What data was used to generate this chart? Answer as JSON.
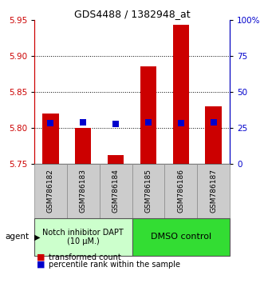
{
  "title": "GDS4488 / 1382948_at",
  "samples": [
    "GSM786182",
    "GSM786183",
    "GSM786184",
    "GSM786185",
    "GSM786186",
    "GSM786187"
  ],
  "red_bar_top": [
    5.82,
    5.8,
    5.763,
    5.885,
    5.943,
    5.83
  ],
  "red_bar_bottom": 5.75,
  "blue_square_y": [
    5.807,
    5.808,
    5.806,
    5.808,
    5.807,
    5.808
  ],
  "ylim": [
    5.75,
    5.95
  ],
  "yticks_left": [
    5.75,
    5.8,
    5.85,
    5.9,
    5.95
  ],
  "yticks_right": [
    0,
    25,
    50,
    75,
    100
  ],
  "yticks_right_labels": [
    "0",
    "25",
    "50",
    "75",
    "100%"
  ],
  "left_color": "#cc0000",
  "right_color": "#0000cc",
  "bar_color": "#cc0000",
  "blue_color": "#0000cc",
  "group1_label": "Notch inhibitor DAPT\n(10 μM.)",
  "group2_label": "DMSO control",
  "group1_color": "#ccffcc",
  "group2_color": "#33dd33",
  "legend_red": "transformed count",
  "legend_blue": "percentile rank within the sample",
  "bar_width": 0.5,
  "blue_sq_size": 40,
  "grid_lines": [
    5.8,
    5.85,
    5.9
  ],
  "plot_bg": "#ffffff",
  "sample_box_color": "#cccccc",
  "sample_box_edge": "#888888"
}
